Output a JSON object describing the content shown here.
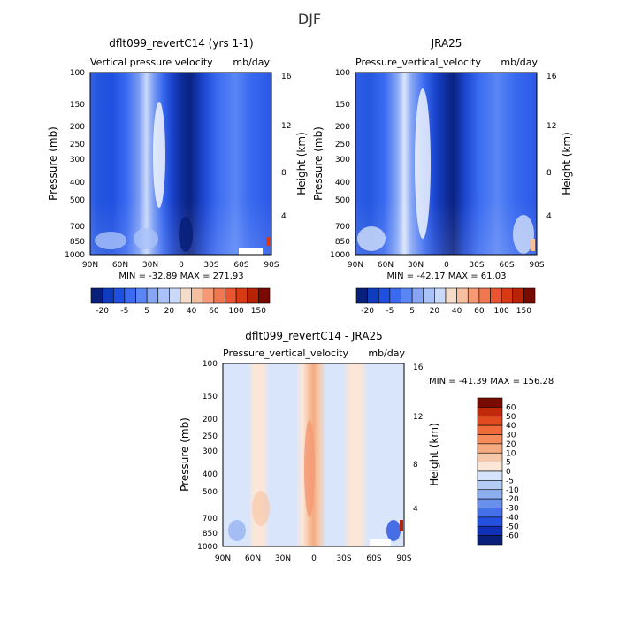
{
  "figure_title": "DJF",
  "chart_data": [
    {
      "type": "heatmap",
      "title": "dflt099_revertC14 (yrs 1-1)",
      "subtitle": "Vertical pressure velocity",
      "units": "mb/day",
      "xlabel": "",
      "ylabel": "Pressure (mb)",
      "ylabel_right": "Height (km)",
      "x_ticks": [
        "90N",
        "60N",
        "30N",
        "0",
        "30S",
        "60S",
        "90S"
      ],
      "y_ticks": [
        "100",
        "150",
        "200",
        "250",
        "300",
        "400",
        "500",
        "700",
        "850",
        "1000"
      ],
      "y_right_ticks": [
        "16",
        "12",
        "8",
        "4"
      ],
      "stats": "MIN = -32.89   MAX = 271.93",
      "colorbar": {
        "orientation": "horizontal",
        "labels": [
          "-20",
          "-5",
          "5",
          "20",
          "40",
          "60",
          "100",
          "150"
        ],
        "colors": [
          "#08207a",
          "#0f3cbf",
          "#1f4fe0",
          "#3a6af0",
          "#5a86f5",
          "#86a6f5",
          "#aac2f7",
          "#cad9f8",
          "#f5dcc8",
          "#f5bfa0",
          "#f59a75",
          "#f07850",
          "#e85530",
          "#d83a14",
          "#b82205",
          "#7a0a00"
        ]
      },
      "note": "values read as shaded contour fields; no discrete data points printed"
    },
    {
      "type": "heatmap",
      "title": "JRA25",
      "subtitle": "Pressure_vertical_velocity",
      "units": "mb/day",
      "xlabel": "",
      "ylabel": "Pressure (mb)",
      "ylabel_right": "Height (km)",
      "x_ticks": [
        "90N",
        "60N",
        "30N",
        "0",
        "30S",
        "60S",
        "90S"
      ],
      "y_ticks": [
        "100",
        "150",
        "200",
        "250",
        "300",
        "400",
        "500",
        "700",
        "850",
        "1000"
      ],
      "y_right_ticks": [
        "16",
        "12",
        "8",
        "4"
      ],
      "stats": "MIN = -42.17   MAX =   61.03",
      "colorbar": {
        "orientation": "horizontal",
        "labels": [
          "-20",
          "-5",
          "5",
          "20",
          "40",
          "60",
          "100",
          "150"
        ],
        "colors": [
          "#08207a",
          "#0f3cbf",
          "#1f4fe0",
          "#3a6af0",
          "#5a86f5",
          "#86a6f5",
          "#aac2f7",
          "#cad9f8",
          "#f5dcc8",
          "#f5bfa0",
          "#f59a75",
          "#f07850",
          "#e85530",
          "#d83a14",
          "#b82205",
          "#7a0a00"
        ]
      }
    },
    {
      "type": "heatmap",
      "title": "dflt099_revertC14 - JRA25",
      "subtitle": "Pressure_vertical_velocity",
      "units": "mb/day",
      "xlabel": "",
      "ylabel": "Pressure (mb)",
      "ylabel_right": "Height (km)",
      "x_ticks": [
        "90N",
        "60N",
        "30N",
        "0",
        "30S",
        "60S",
        "90S"
      ],
      "y_ticks": [
        "100",
        "150",
        "200",
        "250",
        "300",
        "400",
        "500",
        "700",
        "850",
        "1000"
      ],
      "y_right_ticks": [
        "16",
        "12",
        "8",
        "4"
      ],
      "stats": "MIN = -41.39   MAX = 156.28",
      "colorbar": {
        "orientation": "vertical",
        "labels": [
          "60",
          "50",
          "40",
          "30",
          "20",
          "10",
          "5",
          "0",
          "-5",
          "-10",
          "-20",
          "-30",
          "-40",
          "-50",
          "-60"
        ],
        "colors": [
          "#7a0a00",
          "#c02a0a",
          "#e24a20",
          "#f06a3a",
          "#f58a5a",
          "#f5aa80",
          "#f6c8aa",
          "#fbe6d8",
          "#d6e4fb",
          "#b4cbf6",
          "#8eaef2",
          "#6a90ee",
          "#4470ea",
          "#2450e0",
          "#1030b8",
          "#08207a"
        ]
      }
    }
  ]
}
